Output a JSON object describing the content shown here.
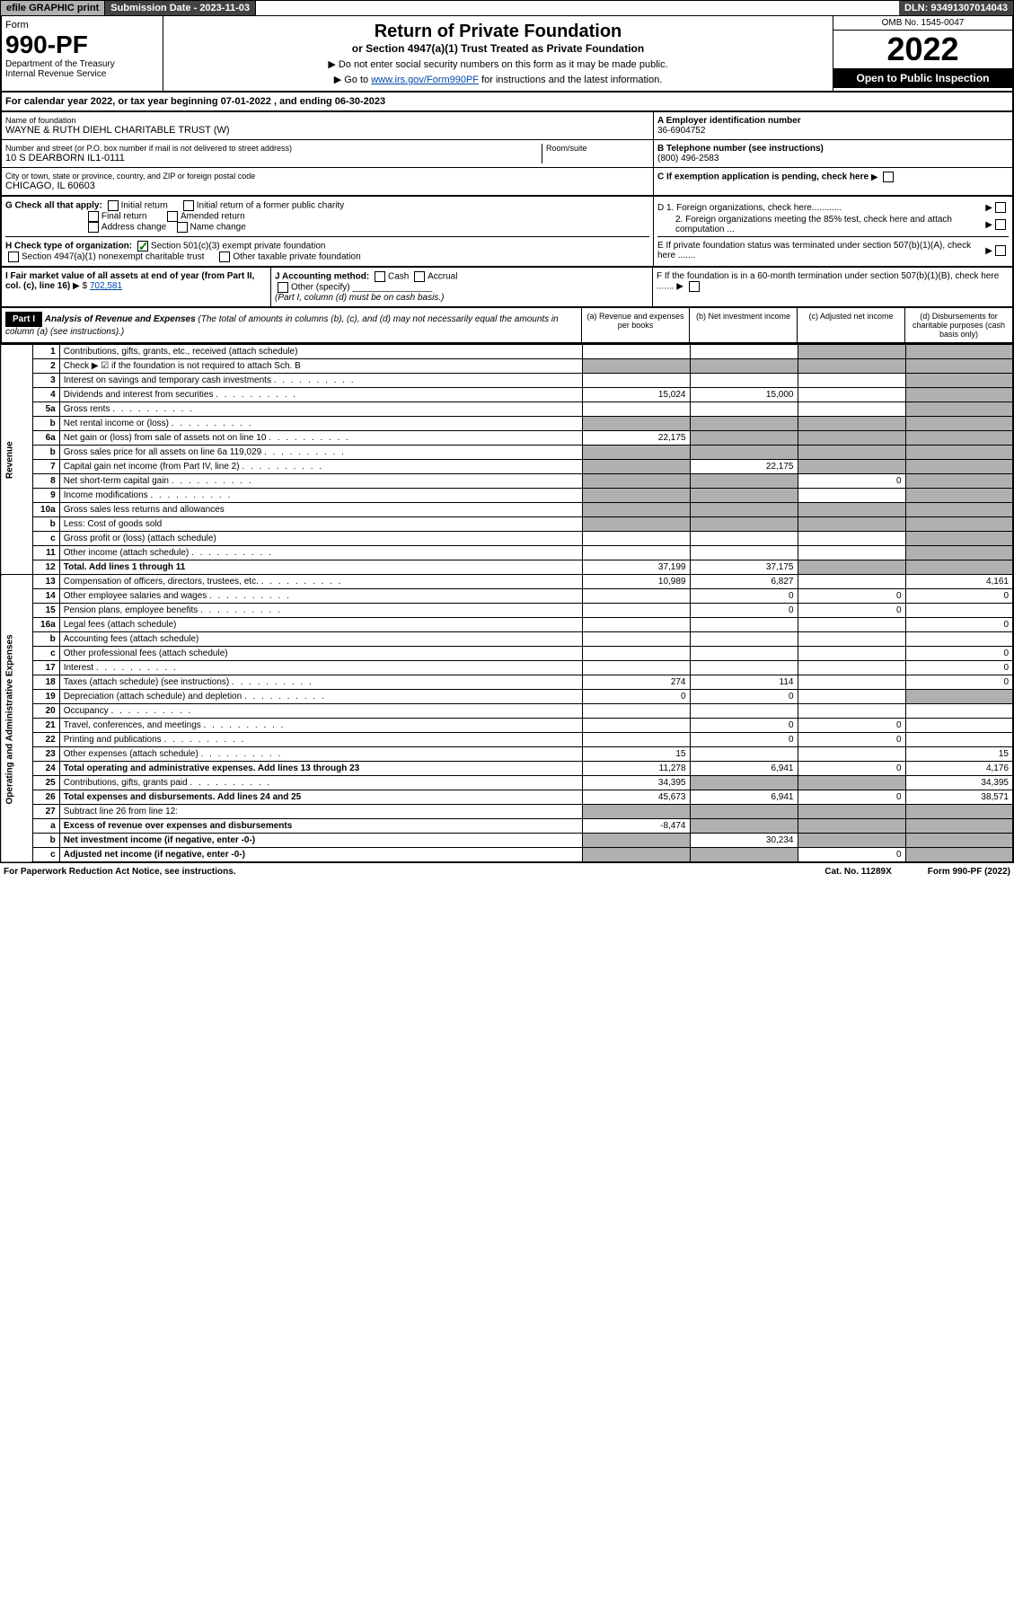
{
  "top": {
    "efile": "efile GRAPHIC print",
    "submission_label": "Submission Date - 2023-11-03",
    "dln": "DLN: 93491307014043"
  },
  "header": {
    "form_label": "Form",
    "form_num": "990-PF",
    "dept1": "Department of the Treasury",
    "dept2": "Internal Revenue Service",
    "title": "Return of Private Foundation",
    "subtitle": "or Section 4947(a)(1) Trust Treated as Private Foundation",
    "instr1": "▶ Do not enter social security numbers on this form as it may be made public.",
    "instr2_pre": "▶ Go to ",
    "instr2_link": "www.irs.gov/Form990PF",
    "instr2_post": " for instructions and the latest information.",
    "omb": "OMB No. 1545-0047",
    "year": "2022",
    "open": "Open to Public Inspection"
  },
  "cal_year": "For calendar year 2022, or tax year beginning 07-01-2022                    , and ending 06-30-2023",
  "info": {
    "name_label": "Name of foundation",
    "name": "WAYNE & RUTH DIEHL CHARITABLE TRUST (W)",
    "street_label": "Number and street (or P.O. box number if mail is not delivered to street address)",
    "street": "10 S DEARBORN IL1-0111",
    "room_label": "Room/suite",
    "city_label": "City or town, state or province, country, and ZIP or foreign postal code",
    "city": "CHICAGO, IL  60603",
    "ein_label": "A Employer identification number",
    "ein": "36-6904752",
    "phone_label": "B Telephone number (see instructions)",
    "phone": "(800) 496-2583",
    "c_label": "C If exemption application is pending, check here"
  },
  "checks": {
    "g_label": "G Check all that apply:",
    "g_opts": [
      "Initial return",
      "Initial return of a former public charity",
      "Final return",
      "Amended return",
      "Address change",
      "Name change"
    ],
    "h_label": "H Check type of organization:",
    "h_opt1": "Section 501(c)(3) exempt private foundation",
    "h_opt2": "Section 4947(a)(1) nonexempt charitable trust",
    "h_opt3": "Other taxable private foundation",
    "d1": "D 1. Foreign organizations, check here............",
    "d2": "2. Foreign organizations meeting the 85% test, check here and attach computation ...",
    "e": "E  If private foundation status was terminated under section 507(b)(1)(A), check here .......",
    "f": "F  If the foundation is in a 60-month termination under section 507(b)(1)(B), check here ......."
  },
  "fmv": {
    "i_label": "I Fair market value of all assets at end of year (from Part II, col. (c), line 16)",
    "i_val": "702,581",
    "j_label": "J Accounting method:",
    "j_cash": "Cash",
    "j_accrual": "Accrual",
    "j_other": "Other (specify)",
    "j_note": "(Part I, column (d) must be on cash basis.)"
  },
  "part1": {
    "label": "Part I",
    "title": "Analysis of Revenue and Expenses",
    "note": "(The total of amounts in columns (b), (c), and (d) may not necessarily equal the amounts in column (a) (see instructions).)",
    "col_a": "(a)   Revenue and expenses per books",
    "col_b": "(b)   Net investment income",
    "col_c": "(c)   Adjusted net income",
    "col_d": "(d)   Disbursements for charitable purposes (cash basis only)"
  },
  "side_rev": "Revenue",
  "side_exp": "Operating and Administrative Expenses",
  "lines": {
    "1": {
      "n": "1",
      "d": "Contributions, gifts, grants, etc., received (attach schedule)"
    },
    "2": {
      "n": "2",
      "d": "Check ▶ ☑ if the foundation is not required to attach Sch. B"
    },
    "3": {
      "n": "3",
      "d": "Interest on savings and temporary cash investments"
    },
    "4": {
      "n": "4",
      "d": "Dividends and interest from securities",
      "a": "15,024",
      "b": "15,000"
    },
    "5a": {
      "n": "5a",
      "d": "Gross rents"
    },
    "5b": {
      "n": "b",
      "d": "Net rental income or (loss)"
    },
    "6a": {
      "n": "6a",
      "d": "Net gain or (loss) from sale of assets not on line 10",
      "a": "22,175"
    },
    "6b": {
      "n": "b",
      "d": "Gross sales price for all assets on line 6a",
      "inline": "119,029"
    },
    "7": {
      "n": "7",
      "d": "Capital gain net income (from Part IV, line 2)",
      "b": "22,175"
    },
    "8": {
      "n": "8",
      "d": "Net short-term capital gain",
      "c": "0"
    },
    "9": {
      "n": "9",
      "d": "Income modifications"
    },
    "10a": {
      "n": "10a",
      "d": "Gross sales less returns and allowances"
    },
    "10b": {
      "n": "b",
      "d": "Less: Cost of goods sold"
    },
    "10c": {
      "n": "c",
      "d": "Gross profit or (loss) (attach schedule)"
    },
    "11": {
      "n": "11",
      "d": "Other income (attach schedule)"
    },
    "12": {
      "n": "12",
      "d": "Total. Add lines 1 through 11",
      "a": "37,199",
      "b": "37,175",
      "bold": true
    },
    "13": {
      "n": "13",
      "d": "Compensation of officers, directors, trustees, etc.",
      "a": "10,989",
      "b": "6,827",
      "d_": "4,161"
    },
    "14": {
      "n": "14",
      "d": "Other employee salaries and wages",
      "b": "0",
      "c": "0",
      "d_": "0"
    },
    "15": {
      "n": "15",
      "d": "Pension plans, employee benefits",
      "b": "0",
      "c": "0"
    },
    "16a": {
      "n": "16a",
      "d": "Legal fees (attach schedule)",
      "d_": "0"
    },
    "16b": {
      "n": "b",
      "d": "Accounting fees (attach schedule)"
    },
    "16c": {
      "n": "c",
      "d": "Other professional fees (attach schedule)",
      "d_": "0"
    },
    "17": {
      "n": "17",
      "d": "Interest",
      "d_": "0"
    },
    "18": {
      "n": "18",
      "d": "Taxes (attach schedule) (see instructions)",
      "a": "274",
      "b": "114",
      "d_": "0"
    },
    "19": {
      "n": "19",
      "d": "Depreciation (attach schedule) and depletion",
      "a": "0",
      "b": "0"
    },
    "20": {
      "n": "20",
      "d": "Occupancy"
    },
    "21": {
      "n": "21",
      "d": "Travel, conferences, and meetings",
      "b": "0",
      "c": "0"
    },
    "22": {
      "n": "22",
      "d": "Printing and publications",
      "b": "0",
      "c": "0"
    },
    "23": {
      "n": "23",
      "d": "Other expenses (attach schedule)",
      "a": "15",
      "d_": "15"
    },
    "24": {
      "n": "24",
      "d": "Total operating and administrative expenses. Add lines 13 through 23",
      "a": "11,278",
      "b": "6,941",
      "c": "0",
      "d_": "4,176",
      "bold": true
    },
    "25": {
      "n": "25",
      "d": "Contributions, gifts, grants paid",
      "a": "34,395",
      "d_": "34,395"
    },
    "26": {
      "n": "26",
      "d": "Total expenses and disbursements. Add lines 24 and 25",
      "a": "45,673",
      "b": "6,941",
      "c": "0",
      "d_": "38,571",
      "bold": true
    },
    "27": {
      "n": "27",
      "d": "Subtract line 26 from line 12:"
    },
    "27a": {
      "n": "a",
      "d": "Excess of revenue over expenses and disbursements",
      "a": "-8,474",
      "bold": true
    },
    "27b": {
      "n": "b",
      "d": "Net investment income (if negative, enter -0-)",
      "b": "30,234",
      "bold": true
    },
    "27c": {
      "n": "c",
      "d": "Adjusted net income (if negative, enter -0-)",
      "c": "0",
      "bold": true
    }
  },
  "footer": {
    "left": "For Paperwork Reduction Act Notice, see instructions.",
    "mid": "Cat. No. 11289X",
    "right": "Form 990-PF (2022)"
  },
  "colors": {
    "shaded": "#b0b0b0",
    "link": "#0047ab",
    "check": "#0a7a0a"
  }
}
